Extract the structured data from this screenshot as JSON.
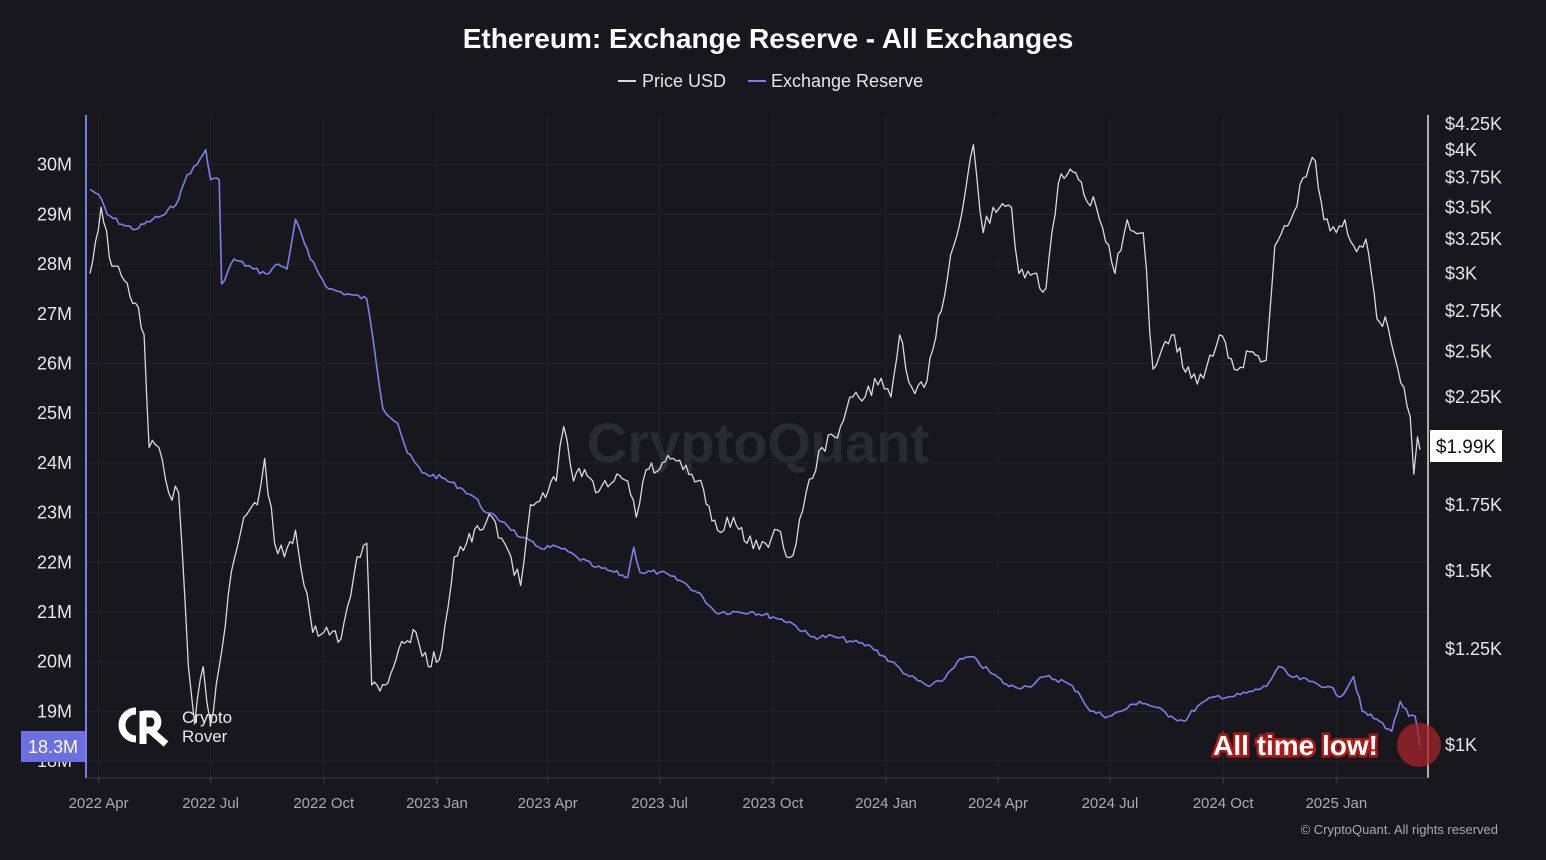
{
  "chart_data": {
    "type": "line",
    "title": "Ethereum: Exchange Reserve - All Exchanges",
    "legend": [
      {
        "name": "Price USD",
        "color": "#d9d9d9"
      },
      {
        "name": "Exchange Reserve",
        "color": "#7b7fe8"
      }
    ],
    "legend_position": "top-center",
    "grid": true,
    "x_ticks": [
      "2022 Apr",
      "2022 Jul",
      "2022 Oct",
      "2023 Jan",
      "2023 Apr",
      "2023 Jul",
      "2023 Oct",
      "2024 Jan",
      "2024 Apr",
      "2024 Jul",
      "2024 Oct",
      "2025 Jan"
    ],
    "x_range": [
      "2022-03-25",
      "2025-03-10"
    ],
    "left_axis": {
      "label": "",
      "ylim": [
        17.9,
        31.0
      ],
      "ticks": [
        {
          "v": 30,
          "label": "30M"
        },
        {
          "v": 29,
          "label": "29M"
        },
        {
          "v": 28,
          "label": "28M"
        },
        {
          "v": 27,
          "label": "27M"
        },
        {
          "v": 26,
          "label": "26M"
        },
        {
          "v": 25,
          "label": "25M"
        },
        {
          "v": 24,
          "label": "24M"
        },
        {
          "v": 23,
          "label": "23M"
        },
        {
          "v": 22,
          "label": "22M"
        },
        {
          "v": 21,
          "label": "21M"
        },
        {
          "v": 20,
          "label": "20M"
        },
        {
          "v": 19,
          "label": "19M"
        },
        {
          "v": 18,
          "label": "18M"
        }
      ]
    },
    "right_axis": {
      "label": "",
      "scale": "log",
      "ticks": [
        {
          "v": 4250,
          "label": "$4.25K"
        },
        {
          "v": 4000,
          "label": "$4K"
        },
        {
          "v": 3750,
          "label": "$3.75K"
        },
        {
          "v": 3500,
          "label": "$3.5K"
        },
        {
          "v": 3250,
          "label": "$3.25K"
        },
        {
          "v": 3000,
          "label": "$3K"
        },
        {
          "v": 2750,
          "label": "$2.75K"
        },
        {
          "v": 2500,
          "label": "$2.5K"
        },
        {
          "v": 2250,
          "label": "$2.25K"
        },
        {
          "v": 1750,
          "label": "$1.75K"
        },
        {
          "v": 1500,
          "label": "$1.5K"
        },
        {
          "v": 1250,
          "label": "$1.25K"
        },
        {
          "v": 1000,
          "label": "$1K"
        }
      ]
    },
    "series": [
      {
        "name": "Exchange Reserve",
        "unit": "M ETH",
        "axis": "left",
        "points": [
          [
            "2022-03-25",
            29.5
          ],
          [
            "2022-04-01",
            29.4
          ],
          [
            "2022-04-08",
            29.0
          ],
          [
            "2022-04-20",
            28.8
          ],
          [
            "2022-05-01",
            28.7
          ],
          [
            "2022-05-15",
            28.9
          ],
          [
            "2022-05-25",
            29.0
          ],
          [
            "2022-06-05",
            29.3
          ],
          [
            "2022-06-12",
            29.8
          ],
          [
            "2022-06-20",
            30.0
          ],
          [
            "2022-06-27",
            30.3
          ],
          [
            "2022-07-01",
            29.7
          ],
          [
            "2022-07-08",
            29.7
          ],
          [
            "2022-07-10",
            27.6
          ],
          [
            "2022-07-20",
            28.1
          ],
          [
            "2022-08-05",
            27.9
          ],
          [
            "2022-08-15",
            27.8
          ],
          [
            "2022-08-25",
            28.0
          ],
          [
            "2022-09-01",
            27.9
          ],
          [
            "2022-09-08",
            28.9
          ],
          [
            "2022-09-20",
            28.1
          ],
          [
            "2022-10-05",
            27.5
          ],
          [
            "2022-10-20",
            27.4
          ],
          [
            "2022-11-05",
            27.3
          ],
          [
            "2022-11-10",
            26.5
          ],
          [
            "2022-11-18",
            25.1
          ],
          [
            "2022-11-30",
            24.8
          ],
          [
            "2022-12-08",
            24.2
          ],
          [
            "2022-12-20",
            23.8
          ],
          [
            "2023-01-05",
            23.7
          ],
          [
            "2023-01-20",
            23.5
          ],
          [
            "2023-02-01",
            23.3
          ],
          [
            "2023-02-10",
            23.0
          ],
          [
            "2023-02-25",
            22.8
          ],
          [
            "2023-03-10",
            22.5
          ],
          [
            "2023-03-25",
            22.3
          ],
          [
            "2023-04-10",
            22.3
          ],
          [
            "2023-04-25",
            22.1
          ],
          [
            "2023-05-10",
            21.9
          ],
          [
            "2023-05-25",
            21.8
          ],
          [
            "2023-06-05",
            21.7
          ],
          [
            "2023-06-10",
            22.3
          ],
          [
            "2023-06-15",
            21.8
          ],
          [
            "2023-07-01",
            21.8
          ],
          [
            "2023-07-20",
            21.6
          ],
          [
            "2023-08-05",
            21.3
          ],
          [
            "2023-08-15",
            21.0
          ],
          [
            "2023-09-01",
            21.0
          ],
          [
            "2023-09-15",
            21.0
          ],
          [
            "2023-10-01",
            20.9
          ],
          [
            "2023-10-15",
            20.8
          ],
          [
            "2023-11-01",
            20.5
          ],
          [
            "2023-11-20",
            20.5
          ],
          [
            "2023-12-05",
            20.4
          ],
          [
            "2023-12-20",
            20.3
          ],
          [
            "2024-01-05",
            20.0
          ],
          [
            "2024-01-20",
            19.7
          ],
          [
            "2024-02-05",
            19.5
          ],
          [
            "2024-02-15",
            19.6
          ],
          [
            "2024-02-28",
            20.0
          ],
          [
            "2024-03-10",
            20.1
          ],
          [
            "2024-03-25",
            19.8
          ],
          [
            "2024-04-10",
            19.5
          ],
          [
            "2024-04-25",
            19.5
          ],
          [
            "2024-05-10",
            19.7
          ],
          [
            "2024-05-25",
            19.6
          ],
          [
            "2024-06-05",
            19.4
          ],
          [
            "2024-06-15",
            19.0
          ],
          [
            "2024-06-30",
            18.9
          ],
          [
            "2024-07-10",
            19.0
          ],
          [
            "2024-07-25",
            19.2
          ],
          [
            "2024-08-05",
            19.1
          ],
          [
            "2024-08-20",
            18.9
          ],
          [
            "2024-08-30",
            18.8
          ],
          [
            "2024-09-10",
            19.1
          ],
          [
            "2024-09-25",
            19.3
          ],
          [
            "2024-10-10",
            19.3
          ],
          [
            "2024-10-25",
            19.4
          ],
          [
            "2024-11-05",
            19.5
          ],
          [
            "2024-11-15",
            19.9
          ],
          [
            "2024-11-25",
            19.7
          ],
          [
            "2024-12-10",
            19.6
          ],
          [
            "2024-12-25",
            19.5
          ],
          [
            "2025-01-05",
            19.3
          ],
          [
            "2025-01-15",
            19.7
          ],
          [
            "2025-01-22",
            19.0
          ],
          [
            "2025-02-05",
            18.8
          ],
          [
            "2025-02-15",
            18.6
          ],
          [
            "2025-02-22",
            19.2
          ],
          [
            "2025-03-01",
            18.9
          ],
          [
            "2025-03-06",
            18.9
          ],
          [
            "2025-03-10",
            18.3
          ]
        ]
      },
      {
        "name": "Price USD",
        "unit": "USD",
        "axis": "right",
        "points": [
          [
            "2022-03-25",
            3000
          ],
          [
            "2022-04-03",
            3500
          ],
          [
            "2022-04-12",
            3050
          ],
          [
            "2022-04-22",
            2950
          ],
          [
            "2022-05-01",
            2800
          ],
          [
            "2022-05-08",
            2600
          ],
          [
            "2022-05-12",
            2000
          ],
          [
            "2022-05-20",
            2000
          ],
          [
            "2022-05-28",
            1800
          ],
          [
            "2022-06-05",
            1800
          ],
          [
            "2022-06-13",
            1200
          ],
          [
            "2022-06-18",
            1050
          ],
          [
            "2022-06-25",
            1200
          ],
          [
            "2022-07-01",
            1050
          ],
          [
            "2022-07-08",
            1200
          ],
          [
            "2022-07-18",
            1500
          ],
          [
            "2022-07-28",
            1700
          ],
          [
            "2022-08-08",
            1750
          ],
          [
            "2022-08-14",
            1950
          ],
          [
            "2022-08-22",
            1600
          ],
          [
            "2022-08-30",
            1550
          ],
          [
            "2022-09-08",
            1650
          ],
          [
            "2022-09-15",
            1450
          ],
          [
            "2022-09-22",
            1300
          ],
          [
            "2022-10-01",
            1300
          ],
          [
            "2022-10-15",
            1280
          ],
          [
            "2022-10-28",
            1550
          ],
          [
            "2022-11-05",
            1600
          ],
          [
            "2022-11-09",
            1150
          ],
          [
            "2022-11-20",
            1150
          ],
          [
            "2022-12-01",
            1250
          ],
          [
            "2022-12-15",
            1300
          ],
          [
            "2022-12-25",
            1200
          ],
          [
            "2023-01-05",
            1250
          ],
          [
            "2023-01-15",
            1550
          ],
          [
            "2023-01-25",
            1600
          ],
          [
            "2023-02-05",
            1650
          ],
          [
            "2023-02-15",
            1700
          ],
          [
            "2023-02-25",
            1600
          ],
          [
            "2023-03-10",
            1450
          ],
          [
            "2023-03-18",
            1750
          ],
          [
            "2023-03-28",
            1800
          ],
          [
            "2023-04-08",
            1850
          ],
          [
            "2023-04-14",
            2100
          ],
          [
            "2023-04-22",
            1850
          ],
          [
            "2023-05-01",
            1900
          ],
          [
            "2023-05-10",
            1800
          ],
          [
            "2023-05-25",
            1850
          ],
          [
            "2023-06-05",
            1850
          ],
          [
            "2023-06-12",
            1700
          ],
          [
            "2023-06-20",
            1900
          ],
          [
            "2023-07-01",
            1900
          ],
          [
            "2023-07-12",
            1950
          ],
          [
            "2023-07-20",
            1900
          ],
          [
            "2023-08-01",
            1850
          ],
          [
            "2023-08-17",
            1650
          ],
          [
            "2023-08-30",
            1700
          ],
          [
            "2023-09-10",
            1600
          ],
          [
            "2023-09-25",
            1600
          ],
          [
            "2023-10-05",
            1650
          ],
          [
            "2023-10-12",
            1550
          ],
          [
            "2023-10-20",
            1600
          ],
          [
            "2023-10-28",
            1800
          ],
          [
            "2023-11-10",
            2000
          ],
          [
            "2023-11-20",
            2050
          ],
          [
            "2023-12-05",
            2250
          ],
          [
            "2023-12-15",
            2250
          ],
          [
            "2023-12-28",
            2350
          ],
          [
            "2024-01-05",
            2250
          ],
          [
            "2024-01-12",
            2600
          ],
          [
            "2024-01-22",
            2300
          ],
          [
            "2024-02-01",
            2300
          ],
          [
            "2024-02-15",
            2750
          ],
          [
            "2024-02-25",
            3200
          ],
          [
            "2024-03-05",
            3600
          ],
          [
            "2024-03-12",
            4050
          ],
          [
            "2024-03-20",
            3300
          ],
          [
            "2024-03-28",
            3500
          ],
          [
            "2024-04-12",
            3500
          ],
          [
            "2024-04-18",
            3000
          ],
          [
            "2024-04-30",
            3000
          ],
          [
            "2024-05-10",
            2900
          ],
          [
            "2024-05-20",
            3700
          ],
          [
            "2024-06-01",
            3800
          ],
          [
            "2024-06-10",
            3600
          ],
          [
            "2024-06-20",
            3500
          ],
          [
            "2024-07-05",
            3000
          ],
          [
            "2024-07-15",
            3400
          ],
          [
            "2024-07-28",
            3300
          ],
          [
            "2024-08-05",
            2400
          ],
          [
            "2024-08-20",
            2600
          ],
          [
            "2024-09-05",
            2350
          ],
          [
            "2024-09-15",
            2350
          ],
          [
            "2024-09-28",
            2600
          ],
          [
            "2024-10-10",
            2400
          ],
          [
            "2024-10-25",
            2500
          ],
          [
            "2024-11-05",
            2450
          ],
          [
            "2024-11-12",
            3200
          ],
          [
            "2024-11-25",
            3400
          ],
          [
            "2024-12-05",
            3750
          ],
          [
            "2024-12-15",
            3900
          ],
          [
            "2024-12-22",
            3400
          ],
          [
            "2025-01-01",
            3300
          ],
          [
            "2025-01-08",
            3400
          ],
          [
            "2025-01-15",
            3200
          ],
          [
            "2025-01-25",
            3250
          ],
          [
            "2025-02-03",
            2700
          ],
          [
            "2025-02-12",
            2650
          ],
          [
            "2025-02-25",
            2300
          ],
          [
            "2025-03-02",
            2150
          ],
          [
            "2025-03-05",
            1880
          ],
          [
            "2025-03-08",
            2050
          ],
          [
            "2025-03-10",
            1990
          ]
        ]
      }
    ],
    "current_reserve_label": "18.3M",
    "current_price_label": "$1.99K",
    "annotation": "All time low!",
    "watermark": "CryptoQuant",
    "copyright": "© CryptoQuant. All rights reserved",
    "logo_text": [
      "Crypto",
      "Rover"
    ],
    "logo_mark": "CR"
  }
}
